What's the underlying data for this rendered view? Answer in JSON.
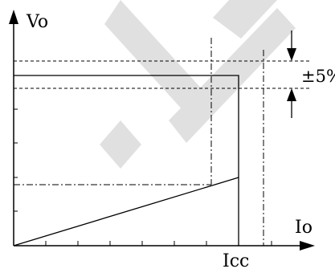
{
  "diagram": {
    "y_axis_label": "Vo",
    "x_axis_label": "Io",
    "current_limit_label": "Icc",
    "tolerance_label": "±5%"
  },
  "colors": {
    "line": "#000000",
    "watermark": "#c8c8c8",
    "background": "#ffffff"
  }
}
